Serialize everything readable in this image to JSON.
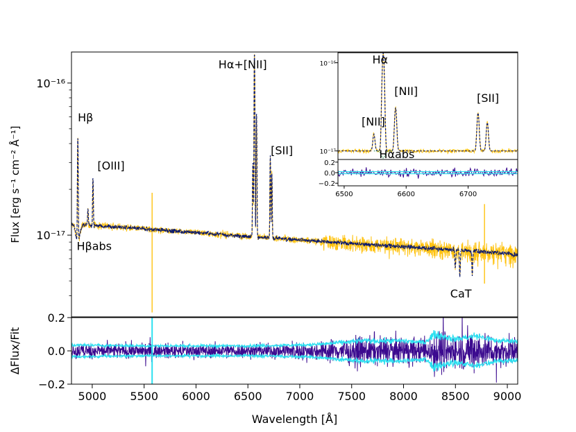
{
  "chart_data": [
    {
      "id": "main",
      "type": "line",
      "xlabel": "",
      "ylabel": "Flux [erg s⁻¹ cm⁻² Å⁻¹]",
      "xlim": [
        4800,
        9100
      ],
      "ylim": [
        2.9e-18,
        1.6e-16
      ],
      "yscale": "log",
      "yticks": [
        {
          "value": 1e-17,
          "label": "10⁻¹⁷"
        },
        {
          "value": 1e-16,
          "label": "10⁻¹⁶"
        }
      ],
      "series": [
        {
          "role": "observed",
          "color": "#FFC20E",
          "style": "solid"
        },
        {
          "role": "model",
          "color": "#0D1B6E",
          "style": "dashed"
        }
      ],
      "continuum": {
        "x": [
          4800,
          5000,
          5500,
          6000,
          6500,
          7000,
          7500,
          8000,
          8500,
          9000,
          9100
        ],
        "y": [
          1.18e-17,
          1.16e-17,
          1.1e-17,
          1.04e-17,
          9.8e-18,
          9.3e-18,
          8.8e-18,
          8.4e-18,
          8e-18,
          7.6e-18,
          7.4e-18
        ]
      },
      "emission_lines": [
        {
          "x": 4861,
          "peak": 4.7e-17
        },
        {
          "x": 4959,
          "peak": 1.5e-17
        },
        {
          "x": 5007,
          "peak": 2.4e-17
        },
        {
          "x": 6548,
          "peak": 3e-17
        },
        {
          "x": 6563,
          "peak": 1.6e-16
        },
        {
          "x": 6583,
          "peak": 6.5e-17
        },
        {
          "x": 6716,
          "peak": 3.3e-17
        },
        {
          "x": 6731,
          "peak": 2.6e-17
        }
      ],
      "absorption_lines": [
        {
          "x": 8498,
          "depth": 6e-18
        },
        {
          "x": 8542,
          "depth": 5.3e-18
        },
        {
          "x": 8662,
          "depth": 5.5e-18
        }
      ],
      "annotations": [
        {
          "text": "Hβ",
          "x": 4861,
          "y": 5.6e-17
        },
        {
          "text": "[OIII]",
          "x": 5050,
          "y": 2.7e-17
        },
        {
          "text": "Hα+[NII]",
          "x": 6450,
          "y": 1.25e-16
        },
        {
          "text": "[SII]",
          "x": 6720,
          "y": 3.4e-17
        },
        {
          "text": "Hβabs",
          "x": 4850,
          "y": 8e-18
        },
        {
          "text": "CaT",
          "x": 8450,
          "y": 3.9e-18
        }
      ]
    },
    {
      "id": "residual",
      "type": "line",
      "xlabel": "Wavelength [Å]",
      "ylabel": "ΔFlux/Fit",
      "xlim": [
        4800,
        9100
      ],
      "ylim": [
        -0.2,
        0.2
      ],
      "xticks": [
        5000,
        5500,
        6000,
        6500,
        7000,
        7500,
        8000,
        8500,
        9000
      ],
      "xtick_labels": [
        "5000",
        "5500",
        "6000",
        "6500",
        "7000",
        "7500",
        "8000",
        "8500",
        "9000"
      ],
      "yticks": [
        -0.2,
        0.0,
        0.2
      ],
      "ytick_labels": [
        "−0.2",
        "0.0",
        "0.2"
      ],
      "series": [
        {
          "role": "residual",
          "color": "#3B0A8F"
        },
        {
          "role": "noise",
          "color": "#2CE0F0"
        }
      ],
      "noise_envelope": {
        "x": [
          4800,
          5500,
          6000,
          6500,
          7000,
          7200,
          7400,
          7600,
          7800,
          8000,
          8200,
          8300,
          8500,
          8700,
          8900,
          9100
        ],
        "y": [
          0.035,
          0.03,
          0.03,
          0.03,
          0.035,
          0.04,
          0.05,
          0.06,
          0.06,
          0.06,
          0.05,
          0.1,
          0.07,
          0.09,
          0.06,
          0.06
        ]
      }
    },
    {
      "id": "inset",
      "type": "line",
      "xlim": [
        6490,
        6780
      ],
      "ylim": [
        8e-18,
        1.3e-16
      ],
      "yscale": "log",
      "yticks": [
        {
          "value": 1e-17,
          "label": "10⁻¹⁷"
        },
        {
          "value": 1e-16,
          "label": "10⁻¹⁶"
        }
      ],
      "xticks": [
        6500,
        6600,
        6700
      ],
      "xtick_labels": [
        "6500",
        "6600",
        "6700"
      ],
      "residual_ylim": [
        -0.25,
        0.25
      ],
      "residual_yticks": [
        -0.2,
        0.0,
        0.2
      ],
      "residual_ytick_labels": [
        "−0.2",
        "0.0",
        "0.2"
      ],
      "continuum": 1e-17,
      "lines": [
        {
          "x": 6548,
          "peak": 1.55e-17
        },
        {
          "x": 6563,
          "peak": 1.3e-16
        },
        {
          "x": 6583,
          "peak": 3.1e-17
        },
        {
          "x": 6716,
          "peak": 2.7e-17
        },
        {
          "x": 6731,
          "peak": 2.1e-17
        }
      ],
      "absorption": {
        "x": 6563,
        "depth": 8.3e-18
      },
      "annotations": [
        {
          "text": "[NII]",
          "x": 6547,
          "y": 1.95e-17
        },
        {
          "text": "Hα",
          "x": 6558,
          "y": 9.8e-17
        },
        {
          "text": "[NII]",
          "x": 6600,
          "y": 4.3e-17
        },
        {
          "text": "[SII]",
          "x": 6732,
          "y": 3.6e-17
        },
        {
          "text": "Hαabs",
          "x": 6585,
          "y": 8.3e-18
        }
      ]
    }
  ]
}
